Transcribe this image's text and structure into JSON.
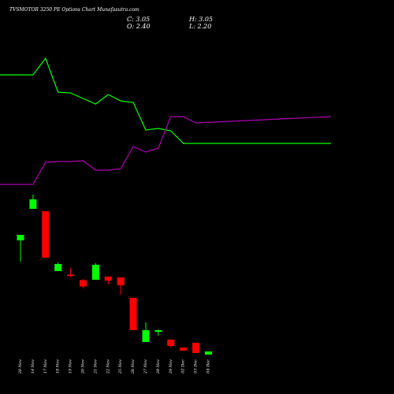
{
  "chart_data": {
    "type": "candlestick",
    "title": "TVSMOTOR 3250 PE Options Chart Munafasutra.com",
    "ohlc_readout": {
      "close": "C: 3.05",
      "open": "O: 2.40",
      "high": "H: 3.05",
      "low": "L: 2.20"
    },
    "categories": [
      "20 Nov",
      "14 Nov",
      "17 Nov",
      "18 Nov",
      "19 Nov",
      "20 Nov",
      "21 Nov",
      "22 Nov",
      "25 Nov",
      "26 Nov",
      "27 Nov",
      "28 Nov",
      "29 Nov",
      "02 Dec",
      "03 Dec",
      "04 Dec"
    ],
    "candles": [
      {
        "open": 55.0,
        "close": 62.0,
        "high": 62.0,
        "low": 28.0,
        "color": "green"
      },
      {
        "open": 95.0,
        "close": 107.0,
        "high": 113.0,
        "low": 95.0,
        "color": "green"
      },
      {
        "open": 92.0,
        "close": 33.0,
        "high": 92.0,
        "low": 33.0,
        "color": "red"
      },
      {
        "open": 16.0,
        "close": 25.0,
        "high": 27.0,
        "low": 16.0,
        "color": "green"
      },
      {
        "open": 11.5,
        "close": 11.0,
        "high": 20.0,
        "low": 8.0,
        "color": "red"
      },
      {
        "open": 4.5,
        "close": -3.5,
        "high": 6.0,
        "low": -6.0,
        "color": "red"
      },
      {
        "open": 5.0,
        "close": 24.0,
        "high": 26.0,
        "low": 5.0,
        "color": "green"
      },
      {
        "open": 9.0,
        "close": 4.0,
        "high": 9.0,
        "low": -1.0,
        "color": "red"
      },
      {
        "open": 8.0,
        "close": -2.0,
        "high": 8.0,
        "low": -14.0,
        "color": "red"
      },
      {
        "open": -18.0,
        "close": -59.0,
        "high": -18.0,
        "low": -59.0,
        "color": "red"
      },
      {
        "open": -74.0,
        "close": -59.0,
        "high": -49.0,
        "low": -74.0,
        "color": "green"
      },
      {
        "open": -61.0,
        "close": -59.0,
        "high": -58.0,
        "low": -66.0,
        "color": "green"
      },
      {
        "open": -71.0,
        "close": -79.0,
        "high": -71.0,
        "low": -81.0,
        "color": "red"
      },
      {
        "open": -81.0,
        "close": -85.0,
        "high": -81.0,
        "low": -85.0,
        "color": "red"
      },
      {
        "open": -75.0,
        "close": -88.0,
        "high": -75.0,
        "low": -88.0,
        "color": "red"
      },
      {
        "open": -90.0,
        "close": -86.0,
        "high": -86.0,
        "low": -90.0,
        "color": "green"
      }
    ],
    "lines": [
      {
        "color": "#00ff00",
        "values": [
          405,
          405,
          426,
          383,
          382,
          375,
          368,
          380,
          372,
          370,
          335,
          337,
          334,
          318,
          318,
          318
        ]
      },
      {
        "color": "#b000b0",
        "values": [
          266,
          266,
          294,
          295,
          295,
          296,
          284,
          284,
          286,
          314,
          307,
          312,
          352,
          352,
          344,
          352
        ]
      }
    ],
    "colors": {
      "background": "#000000",
      "up": "#00ff00",
      "down": "#ff0000"
    },
    "grid": false,
    "legend": "none"
  }
}
